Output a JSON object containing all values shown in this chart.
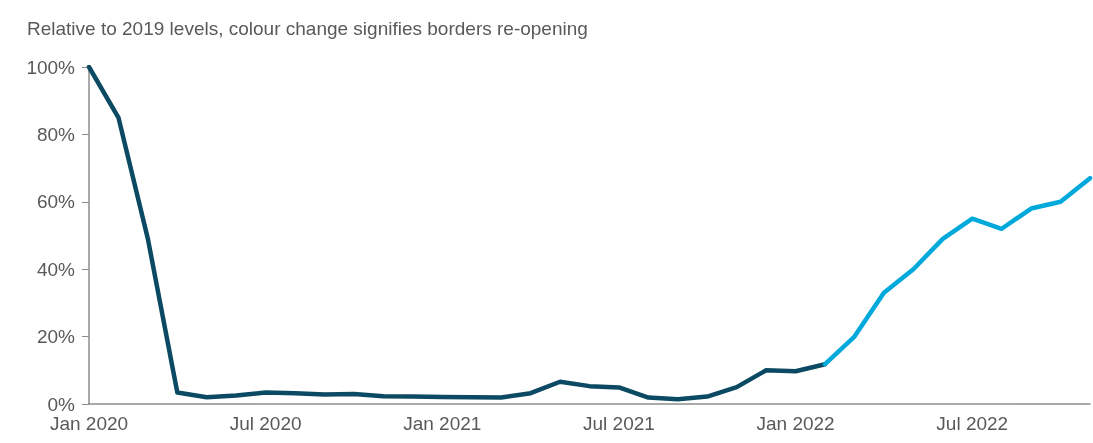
{
  "chart_data": {
    "type": "line",
    "title": "Relative to 2019 levels, colour change signifies borders re-opening",
    "categories": [
      "Jan 2020",
      null,
      null,
      null,
      null,
      null,
      "Jul 2020",
      null,
      null,
      null,
      null,
      null,
      "Jan 2021",
      null,
      null,
      null,
      null,
      null,
      "Jul 2021",
      null,
      null,
      null,
      null,
      null,
      "Jan 2022",
      null,
      null,
      null,
      null,
      null,
      "Jul 2022",
      null,
      null,
      null,
      null
    ],
    "series": [
      {
        "color": "#0b4a62",
        "values": [
          100,
          85,
          49,
          3.4,
          2,
          2.5,
          3.4,
          3.2,
          2.8,
          3,
          2.3,
          2.2,
          2.1,
          2,
          1.9,
          3.2,
          6.6,
          5.3,
          4.9,
          1.9,
          1.4,
          2.2,
          5,
          10,
          9.7,
          11.8,
          null,
          null,
          null,
          null,
          null,
          null,
          null,
          null,
          null
        ]
      },
      {
        "color": "#00a9dc",
        "values": [
          null,
          null,
          null,
          null,
          null,
          null,
          null,
          null,
          null,
          null,
          null,
          null,
          null,
          null,
          null,
          null,
          null,
          null,
          null,
          null,
          null,
          null,
          null,
          null,
          null,
          11.8,
          20,
          33,
          40,
          49,
          55,
          52,
          58,
          60,
          67
        ]
      }
    ],
    "ylim": [
      0,
      100
    ],
    "yticks": [
      {
        "value": 0,
        "label": "0%"
      },
      {
        "value": 20,
        "label": "20%"
      },
      {
        "value": 40,
        "label": "40%"
      },
      {
        "value": 60,
        "label": "60%"
      },
      {
        "value": 80,
        "label": "80%"
      },
      {
        "value": 100,
        "label": "100%"
      }
    ],
    "grid": false,
    "marker": "none",
    "line_style": "solid"
  }
}
